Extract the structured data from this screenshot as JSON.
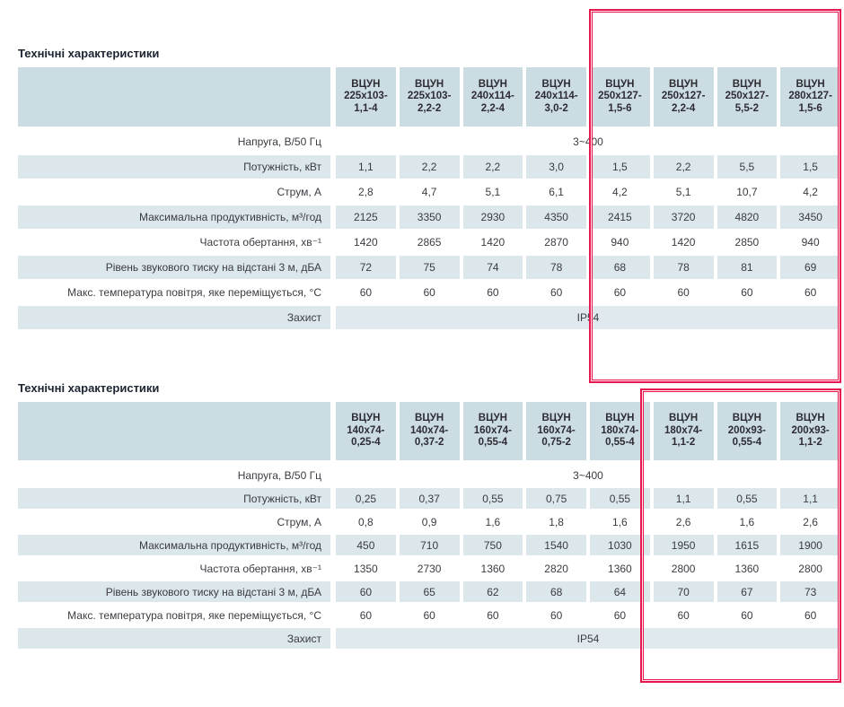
{
  "colors": {
    "highlight_red": "#e8174f",
    "header_bg": "#ccdce3",
    "row_bg": "#dbe7eb",
    "title_color": "#1b2430"
  },
  "highlights": [
    {
      "name": "highlight-box-1",
      "description": "red annotation rectangle over last 4 columns of upper table"
    },
    {
      "name": "highlight-box-2",
      "description": "red annotation rectangle over last 3 columns of lower table"
    }
  ],
  "tables": [
    {
      "title": "Технічні характеристики",
      "columns": [
        [
          "ВЦУН",
          "225x103-",
          "1,1-4"
        ],
        [
          "ВЦУН",
          "225x103-",
          "2,2-2"
        ],
        [
          "ВЦУН",
          "240x114-",
          "2,2-4"
        ],
        [
          "ВЦУН",
          "240x114-",
          "3,0-2"
        ],
        [
          "ВЦУН",
          "250x127-",
          "1,5-6"
        ],
        [
          "ВЦУН",
          "250x127-",
          "2,2-4"
        ],
        [
          "ВЦУН",
          "250x127-",
          "5,5-2"
        ],
        [
          "ВЦУН",
          "280x127-",
          "1,5-6"
        ]
      ],
      "rows": [
        {
          "label": "Напруга, В/50 Гц",
          "span": "3~400",
          "shaded": false
        },
        {
          "label": "Потужність, кВт",
          "values": [
            "1,1",
            "2,2",
            "2,2",
            "3,0",
            "1,5",
            "2,2",
            "5,5",
            "1,5"
          ],
          "shaded": true
        },
        {
          "label": "Струм, А",
          "values": [
            "2,8",
            "4,7",
            "5,1",
            "6,1",
            "4,2",
            "5,1",
            "10,7",
            "4,2"
          ],
          "shaded": false
        },
        {
          "label": "Максимальна продуктивність, м³/год",
          "values": [
            "2125",
            "3350",
            "2930",
            "4350",
            "2415",
            "3720",
            "4820",
            "3450"
          ],
          "shaded": true
        },
        {
          "label": "Частота обертання, хв⁻¹",
          "values": [
            "1420",
            "2865",
            "1420",
            "2870",
            "940",
            "1420",
            "2850",
            "940"
          ],
          "shaded": false
        },
        {
          "label": "Рівень звукового тиску на відстані 3 м, дБА",
          "values": [
            "72",
            "75",
            "74",
            "78",
            "68",
            "78",
            "81",
            "69"
          ],
          "shaded": true
        },
        {
          "label": "Макс. температура повітря, яке переміщується, °С",
          "values": [
            "60",
            "60",
            "60",
            "60",
            "60",
            "60",
            "60",
            "60"
          ],
          "shaded": false
        },
        {
          "label": "Захист",
          "span": "IP54",
          "shaded": true
        }
      ]
    },
    {
      "title": "Технічні характеристики",
      "columns": [
        [
          "ВЦУН",
          "140x74-",
          "0,25-4"
        ],
        [
          "ВЦУН",
          "140x74-",
          "0,37-2"
        ],
        [
          "ВЦУН",
          "160x74-",
          "0,55-4"
        ],
        [
          "ВЦУН",
          "160x74-",
          "0,75-2"
        ],
        [
          "ВЦУН",
          "180x74-",
          "0,55-4"
        ],
        [
          "ВЦУН",
          "180x74-",
          "1,1-2"
        ],
        [
          "ВЦУН",
          "200x93-",
          "0,55-4"
        ],
        [
          "ВЦУН",
          "200x93-",
          "1,1-2"
        ]
      ],
      "rows": [
        {
          "label": "Напруга, В/50 Гц",
          "span": "3~400",
          "shaded": false
        },
        {
          "label": "Потужність, кВт",
          "values": [
            "0,25",
            "0,37",
            "0,55",
            "0,75",
            "0,55",
            "1,1",
            "0,55",
            "1,1"
          ],
          "shaded": true
        },
        {
          "label": "Струм, А",
          "values": [
            "0,8",
            "0,9",
            "1,6",
            "1,8",
            "1,6",
            "2,6",
            "1,6",
            "2,6"
          ],
          "shaded": false
        },
        {
          "label": "Максимальна продуктивність, м³/год",
          "values": [
            "450",
            "710",
            "750",
            "1540",
            "1030",
            "1950",
            "1615",
            "1900"
          ],
          "shaded": true
        },
        {
          "label": "Частота обертання, хв⁻¹",
          "values": [
            "1350",
            "2730",
            "1360",
            "2820",
            "1360",
            "2800",
            "1360",
            "2800"
          ],
          "shaded": false
        },
        {
          "label": "Рівень звукового тиску на відстані 3 м, дБА",
          "values": [
            "60",
            "65",
            "62",
            "68",
            "64",
            "70",
            "67",
            "73"
          ],
          "shaded": true
        },
        {
          "label": "Макс. температура повітря, яке переміщується, °С",
          "values": [
            "60",
            "60",
            "60",
            "60",
            "60",
            "60",
            "60",
            "60"
          ],
          "shaded": false
        },
        {
          "label": "Захист",
          "span": "IP54",
          "shaded": true
        }
      ]
    }
  ]
}
